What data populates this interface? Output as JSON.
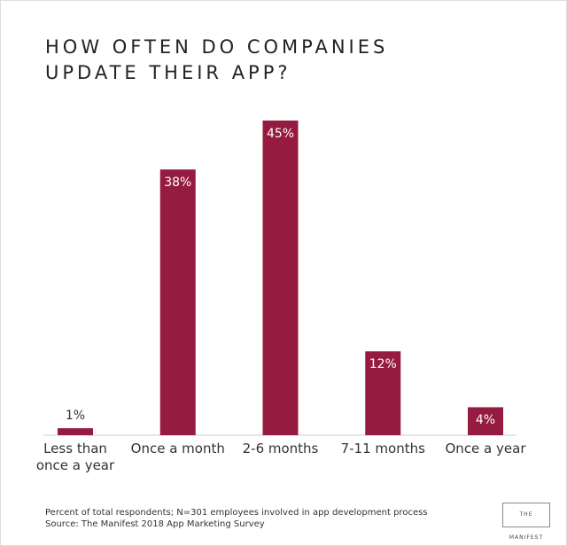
{
  "chart_data": {
    "type": "bar",
    "title": "HOW OFTEN DO COMPANIES UPDATE THEIR APP?",
    "categories": [
      "Less than once a year",
      "Once a month",
      "2-6 months",
      "7-11 months",
      "Once a year"
    ],
    "values": [
      1,
      38,
      45,
      12,
      4
    ],
    "value_labels": [
      "1%",
      "38%",
      "45%",
      "12%",
      "4%"
    ],
    "color": "#951b40",
    "ylim": [
      0,
      45
    ],
    "footnotes": [
      "Percent of total respondents; N=301 employees involved in app development process",
      "Source: The Manifest 2018 App Marketing Survey"
    ],
    "logo": "THE MANIFEST"
  }
}
